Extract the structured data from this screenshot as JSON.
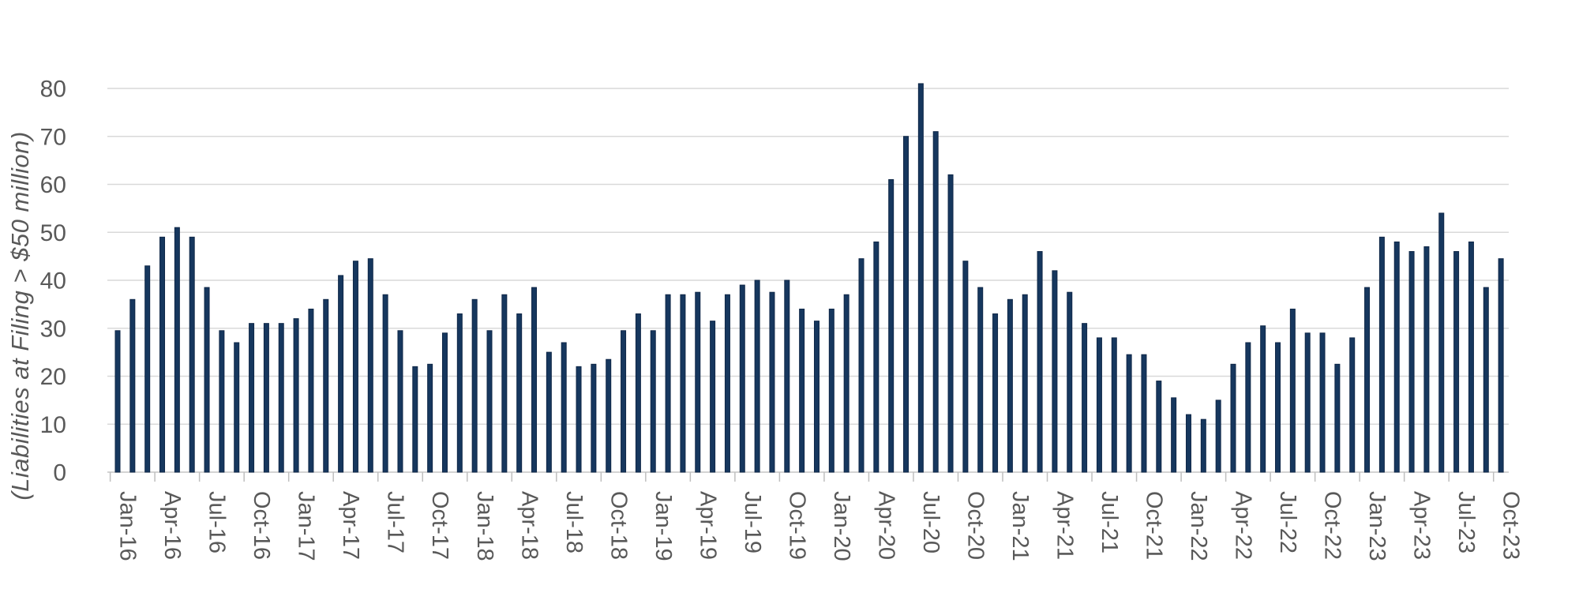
{
  "chart_data": {
    "type": "bar",
    "title": "",
    "ylabel": "(Liabilities at Filing > $50 million)",
    "xlabel": "",
    "ylim": [
      0,
      80
    ],
    "yticks": [
      0,
      10,
      20,
      30,
      40,
      50,
      60,
      70,
      80
    ],
    "x_label_every": 3,
    "grid": true,
    "legend": "none",
    "colors": {
      "bar_fill": "#16375E",
      "bar_edge": "#0F2747",
      "gridline": "#D9D9D9",
      "axis_line": "#C6C6C6",
      "tick_mark": "#BFBFBF",
      "label_text": "#595959"
    },
    "categories": [
      "Jan-16",
      "Feb-16",
      "Mar-16",
      "Apr-16",
      "May-16",
      "Jun-16",
      "Jul-16",
      "Aug-16",
      "Sep-16",
      "Oct-16",
      "Nov-16",
      "Dec-16",
      "Jan-17",
      "Feb-17",
      "Mar-17",
      "Apr-17",
      "May-17",
      "Jun-17",
      "Jul-17",
      "Aug-17",
      "Sep-17",
      "Oct-17",
      "Nov-17",
      "Dec-17",
      "Jan-18",
      "Feb-18",
      "Mar-18",
      "Apr-18",
      "May-18",
      "Jun-18",
      "Jul-18",
      "Aug-18",
      "Sep-18",
      "Oct-18",
      "Nov-18",
      "Dec-18",
      "Jan-19",
      "Feb-19",
      "Mar-19",
      "Apr-19",
      "May-19",
      "Jun-19",
      "Jul-19",
      "Aug-19",
      "Sep-19",
      "Oct-19",
      "Nov-19",
      "Dec-19",
      "Jan-20",
      "Feb-20",
      "Mar-20",
      "Apr-20",
      "May-20",
      "Jun-20",
      "Jul-20",
      "Aug-20",
      "Sep-20",
      "Oct-20",
      "Nov-20",
      "Dec-20",
      "Jan-21",
      "Feb-21",
      "Mar-21",
      "Apr-21",
      "May-21",
      "Jun-21",
      "Jul-21",
      "Aug-21",
      "Sep-21",
      "Oct-21",
      "Nov-21",
      "Dec-21",
      "Jan-22",
      "Feb-22",
      "Mar-22",
      "Apr-22",
      "May-22",
      "Jun-22",
      "Jul-22",
      "Aug-22",
      "Sep-22",
      "Oct-22",
      "Nov-22",
      "Dec-22",
      "Jan-23",
      "Feb-23",
      "Mar-23",
      "Apr-23",
      "May-23",
      "Jun-23",
      "Jul-23",
      "Aug-23",
      "Sep-23",
      "Oct-23"
    ],
    "values": [
      29.5,
      36,
      43,
      49,
      51,
      49,
      38.5,
      29.5,
      27,
      31,
      31,
      31,
      32,
      34,
      36,
      41,
      44,
      44.5,
      37,
      29.5,
      22,
      22.5,
      29,
      33,
      36,
      29.5,
      37,
      33,
      38.5,
      25,
      27,
      22,
      22.5,
      23.5,
      29.5,
      33,
      29.5,
      37,
      37,
      37.5,
      31.5,
      37,
      39,
      40,
      37.5,
      40,
      34,
      31.5,
      34,
      37,
      44.5,
      48,
      61,
      70,
      81,
      71,
      62,
      44,
      38.5,
      33,
      36,
      37,
      46,
      42,
      37.5,
      31,
      28,
      28,
      24.5,
      24.5,
      19,
      15.5,
      12,
      11,
      15,
      22.5,
      27,
      30.5,
      27,
      34,
      29,
      29,
      22.5,
      28,
      38.5,
      49,
      48,
      46,
      47,
      54,
      46,
      48,
      38.5,
      44.5
    ]
  }
}
